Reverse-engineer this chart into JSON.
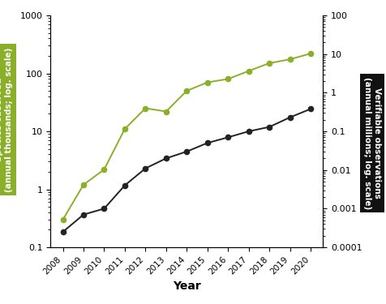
{
  "years": [
    2008,
    2009,
    2010,
    2011,
    2012,
    2013,
    2014,
    2015,
    2016,
    2017,
    2018,
    2019,
    2020
  ],
  "species_thousands": [
    0.3,
    1.2,
    2.2,
    11,
    25,
    22,
    50,
    70,
    80,
    110,
    150,
    175,
    220
  ],
  "observations_millions": [
    0.00025,
    0.0007,
    0.001,
    0.004,
    0.011,
    0.02,
    0.03,
    0.05,
    0.07,
    0.1,
    0.13,
    0.23,
    0.38
  ],
  "species_color": "#8ab02a",
  "obs_color": "#222222",
  "left_ylim": [
    0.1,
    1000
  ],
  "right_ylim": [
    0.0001,
    100
  ],
  "left_yticks": [
    0.1,
    1,
    10,
    100,
    1000
  ],
  "right_yticks": [
    0.0001,
    0.001,
    0.01,
    0.1,
    1,
    10,
    100
  ],
  "left_ylabel": "Species observed\n(annual thousands; log. scale)",
  "right_ylabel": "Verifiable observations\n(annual millions; log. scale)",
  "xlabel": "Year",
  "left_label_bg": "#8ab02a",
  "right_label_bg": "#111111",
  "marker": "o",
  "markersize": 4.5,
  "linewidth": 1.4
}
